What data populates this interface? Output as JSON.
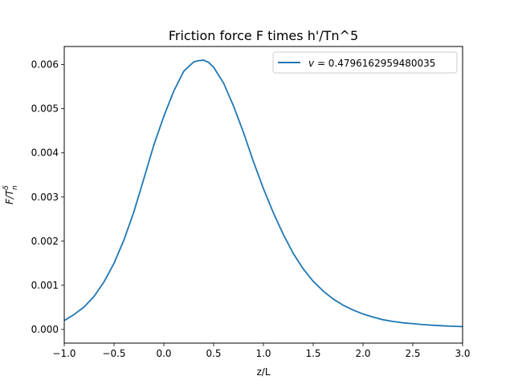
{
  "chart_data": {
    "type": "line",
    "title": "Friction force F times h'/Tn^5",
    "xlabel": "z/L",
    "ylabel": "F/T",
    "ylabel_sup": "5",
    "ylabel_sub": "n",
    "xlim": [
      -1.0,
      3.0
    ],
    "ylim": [
      -0.00031,
      0.00641
    ],
    "x_ticks": [
      -1.0,
      -0.5,
      0.0,
      0.5,
      1.0,
      1.5,
      2.0,
      2.5,
      3.0
    ],
    "x_tick_labels": [
      "−1.0",
      "−0.5",
      "0.0",
      "0.5",
      "1.0",
      "1.5",
      "2.0",
      "2.5",
      "3.0"
    ],
    "y_ticks": [
      0.0,
      0.001,
      0.002,
      0.003,
      0.004,
      0.005,
      0.006
    ],
    "y_tick_labels": [
      "0.000",
      "0.001",
      "0.002",
      "0.003",
      "0.004",
      "0.005",
      "0.006"
    ],
    "grid": false,
    "legend_position": "top-right",
    "series": [
      {
        "name_symbol": "v",
        "name_value": "= 0.4796162959480035",
        "color": "#1f77b4",
        "x": [
          -1.0,
          -0.9,
          -0.8,
          -0.7,
          -0.6,
          -0.5,
          -0.4,
          -0.3,
          -0.2,
          -0.1,
          0.0,
          0.1,
          0.2,
          0.3,
          0.35,
          0.4,
          0.45,
          0.5,
          0.6,
          0.7,
          0.8,
          0.9,
          1.0,
          1.1,
          1.2,
          1.3,
          1.4,
          1.5,
          1.6,
          1.7,
          1.8,
          1.9,
          2.0,
          2.1,
          2.2,
          2.3,
          2.4,
          2.5,
          2.6,
          2.7,
          2.8,
          2.9,
          3.0
        ],
        "y": [
          0.0002,
          0.00034,
          0.00051,
          0.00075,
          0.00108,
          0.0015,
          0.00203,
          0.00267,
          0.00342,
          0.00418,
          0.00483,
          0.0054,
          0.00585,
          0.00606,
          0.00609,
          0.0061,
          0.00605,
          0.00594,
          0.00558,
          0.00506,
          0.00446,
          0.0038,
          0.00319,
          0.00264,
          0.00215,
          0.00172,
          0.00137,
          0.00109,
          0.00087,
          0.00069,
          0.00055,
          0.00044,
          0.00035,
          0.00028,
          0.00022,
          0.00018,
          0.00015,
          0.00013,
          0.00011,
          9.5e-05,
          8.2e-05,
          7.2e-05,
          6.5e-05
        ]
      }
    ]
  }
}
